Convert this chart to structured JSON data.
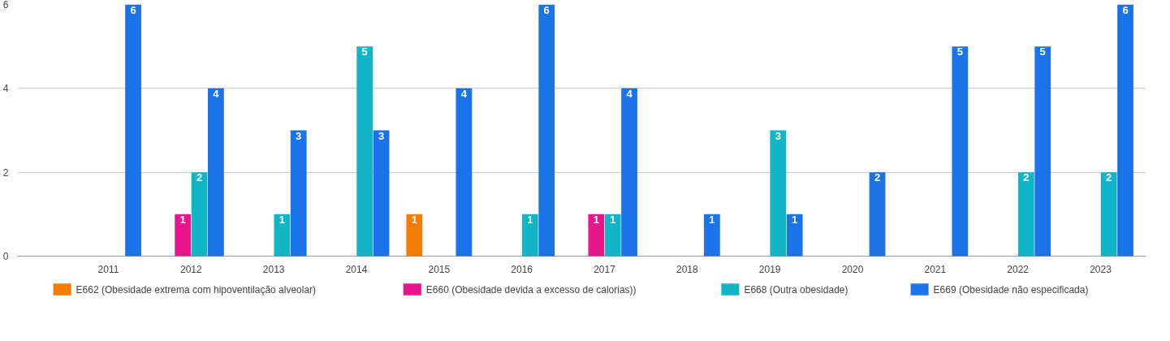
{
  "chart_data": {
    "type": "bar",
    "categories": [
      "2011",
      "2012",
      "2013",
      "2014",
      "2015",
      "2016",
      "2017",
      "2018",
      "2019",
      "2020",
      "2021",
      "2022",
      "2023"
    ],
    "series": [
      {
        "name": "E662 (Obesidade extrema com hipoventilação alveolar)",
        "color": "#f57c00",
        "values": [
          null,
          null,
          null,
          null,
          1,
          null,
          null,
          null,
          null,
          null,
          null,
          null,
          null
        ]
      },
      {
        "name": "E660 (Obesidade devida a excesso de calorias))",
        "color": "#e8158c",
        "values": [
          null,
          1,
          null,
          null,
          null,
          null,
          1,
          null,
          null,
          null,
          null,
          null,
          null
        ]
      },
      {
        "name": "E668 (Outra obesidade)",
        "color": "#12b5c5",
        "values": [
          null,
          2,
          1,
          5,
          null,
          1,
          1,
          null,
          3,
          null,
          null,
          2,
          2
        ]
      },
      {
        "name": "E669 (Obesidade não especificada)",
        "color": "#1a73e8",
        "values": [
          6,
          4,
          3,
          3,
          4,
          6,
          4,
          1,
          1,
          2,
          5,
          5,
          6
        ]
      }
    ],
    "ylim": [
      0,
      6
    ],
    "yticks": [
      0,
      2,
      4,
      6
    ],
    "grid": "y",
    "legend": "bottom",
    "data_labels": true
  }
}
